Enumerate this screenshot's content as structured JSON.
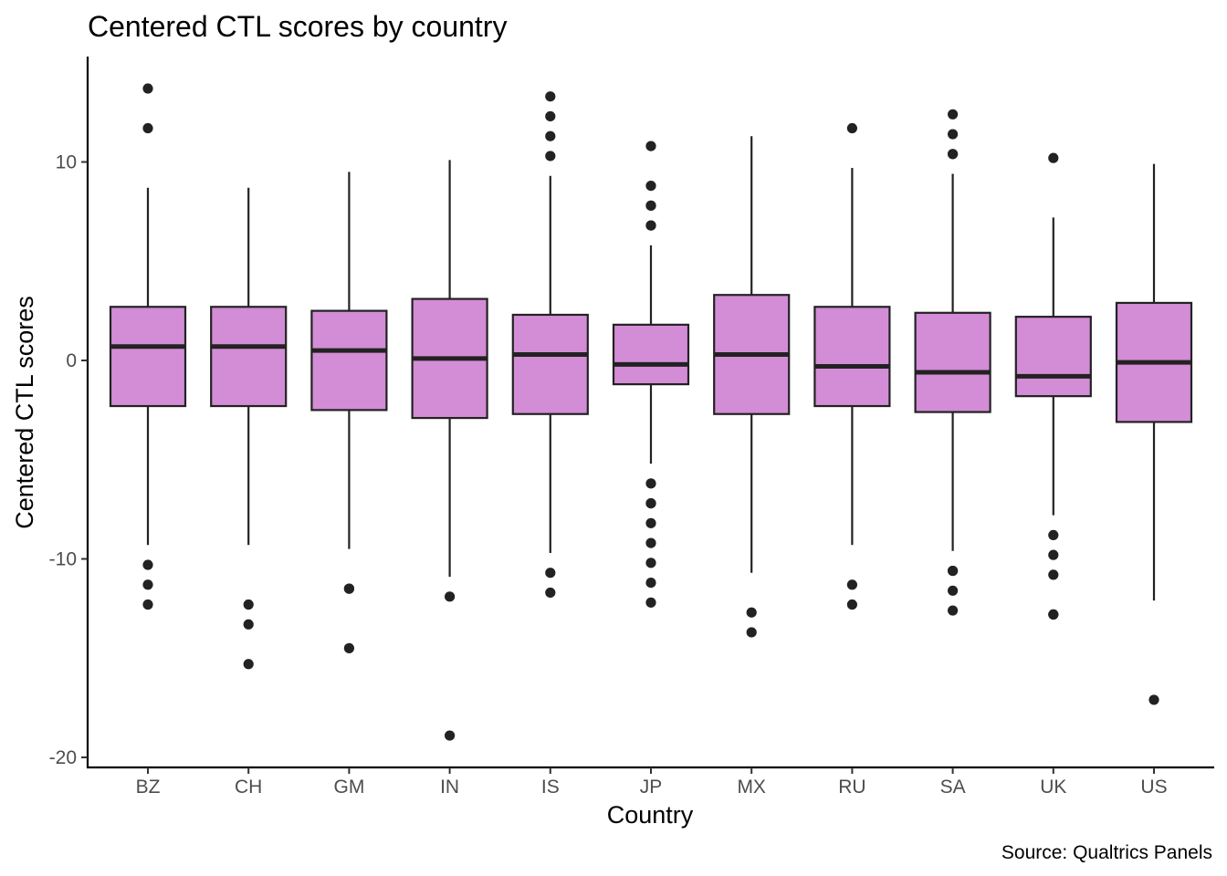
{
  "chart_data": {
    "type": "box",
    "title": "Centered CTL scores by country",
    "xlabel": "Country",
    "ylabel": "Centered CTL scores",
    "caption": "Source: Qualtrics Panels",
    "ylim": [
      -20.5,
      15.0
    ],
    "yticks": [
      -20,
      -10,
      0,
      10
    ],
    "ytick_labels": [
      "-20",
      "-10",
      "0",
      "10"
    ],
    "grid": false,
    "legend": "none",
    "box_fill": "#d38cd6",
    "box_stroke": "#222222",
    "point_color": "#222222",
    "categories": [
      "BZ",
      "CH",
      "GM",
      "IN",
      "IS",
      "JP",
      "MX",
      "RU",
      "SA",
      "UK",
      "US"
    ],
    "boxes": [
      {
        "category": "BZ",
        "whisker_low": -9.3,
        "q1": -2.3,
        "median": 0.7,
        "q3": 2.7,
        "whisker_high": 8.7,
        "outliers": [
          13.7,
          11.7,
          -10.3,
          -11.3,
          -12.3
        ]
      },
      {
        "category": "CH",
        "whisker_low": -9.3,
        "q1": -2.3,
        "median": 0.7,
        "q3": 2.7,
        "whisker_high": 8.7,
        "outliers": [
          -12.3,
          -13.3,
          -15.3
        ]
      },
      {
        "category": "GM",
        "whisker_low": -9.5,
        "q1": -2.5,
        "median": 0.5,
        "q3": 2.5,
        "whisker_high": 9.5,
        "outliers": [
          -11.5,
          -11.5,
          -14.5
        ]
      },
      {
        "category": "IN",
        "whisker_low": -10.9,
        "q1": -2.9,
        "median": 0.1,
        "q3": 3.1,
        "whisker_high": 10.1,
        "outliers": [
          -11.9,
          -18.9
        ]
      },
      {
        "category": "IS",
        "whisker_low": -9.7,
        "q1": -2.7,
        "median": 0.3,
        "q3": 2.3,
        "whisker_high": 9.3,
        "outliers": [
          13.3,
          12.3,
          11.3,
          10.3,
          -10.7,
          -11.7
        ]
      },
      {
        "category": "JP",
        "whisker_low": -5.2,
        "q1": -1.2,
        "median": -0.2,
        "q3": 1.8,
        "whisker_high": 5.8,
        "outliers": [
          10.8,
          8.8,
          7.8,
          7.8,
          6.8,
          6.8,
          -6.2,
          -7.2,
          -7.2,
          -8.2,
          -9.2,
          -10.2,
          -11.2,
          -12.2
        ]
      },
      {
        "category": "MX",
        "whisker_low": -10.7,
        "q1": -2.7,
        "median": 0.3,
        "q3": 3.3,
        "whisker_high": 11.3,
        "outliers": [
          -12.7,
          -13.7
        ]
      },
      {
        "category": "RU",
        "whisker_low": -9.3,
        "q1": -2.3,
        "median": -0.3,
        "q3": 2.7,
        "whisker_high": 9.7,
        "outliers": [
          11.7,
          -11.3,
          -12.3
        ]
      },
      {
        "category": "SA",
        "whisker_low": -9.6,
        "q1": -2.6,
        "median": -0.6,
        "q3": 2.4,
        "whisker_high": 9.4,
        "outliers": [
          12.4,
          11.4,
          10.4,
          10.4,
          -10.6,
          -10.6,
          -11.6,
          -12.6
        ]
      },
      {
        "category": "UK",
        "whisker_low": -7.8,
        "q1": -1.8,
        "median": -0.8,
        "q3": 2.2,
        "whisker_high": 7.2,
        "outliers": [
          10.2,
          -8.8,
          -9.8,
          -10.8,
          -12.8,
          -12.8
        ]
      },
      {
        "category": "US",
        "whisker_low": -12.1,
        "q1": -3.1,
        "median": -0.1,
        "q3": 2.9,
        "whisker_high": 9.9,
        "outliers": [
          -17.1
        ]
      }
    ]
  }
}
